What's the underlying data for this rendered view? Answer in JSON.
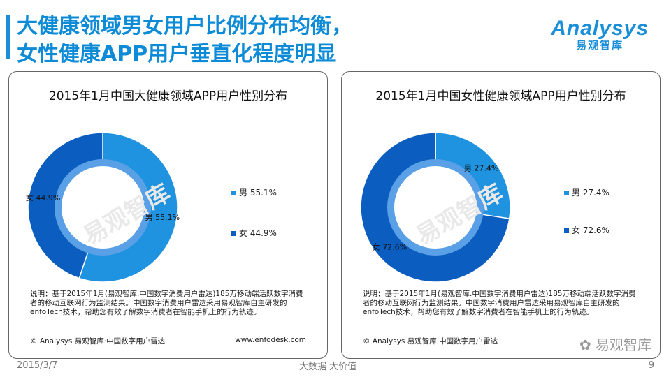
{
  "header": {
    "title_line1": "大健康领域男女用户比例分布均衡，",
    "title_line2": "女性健康APP用户垂直化程度明显",
    "logo_brand": "Analysys",
    "logo_sub": "易观智库"
  },
  "colors": {
    "male": "#1f93e0",
    "female": "#0b5dc0",
    "inner_ring": "#5aa0e6",
    "title": "#0e8bd6"
  },
  "chart_data": [
    {
      "type": "pie",
      "title": "2015年1月中国大健康领域APP用户性别分布",
      "categories": [
        "男",
        "女"
      ],
      "values": [
        55.1,
        44.9
      ],
      "labels": [
        "男 55.1%",
        "女 44.9%"
      ],
      "legend": [
        "男 55.1%",
        "女 44.9%"
      ],
      "legend_position": "right"
    },
    {
      "type": "pie",
      "title": "2015年1月中国女性健康领域APP用户性别分布",
      "categories": [
        "男",
        "女"
      ],
      "values": [
        27.4,
        72.6
      ],
      "labels": [
        "男 27.4%",
        "女 72.6%"
      ],
      "legend": [
        "男 27.4%",
        "女 72.6%"
      ],
      "legend_position": "right"
    }
  ],
  "panel": {
    "note": "说明：基于2015年1月(易观智库.中国数字消费用户雷达)185万移动端活跃数字消费者的移动互联网行为监测结果。中国数字消费用户雷达采用易观智库自主研发的enfoTech技术，帮助您有效了解数字消费者在智能手机上的行为轨迹。",
    "copyright": "© Analysys 易观智库·中国数字用户雷达",
    "url": "www.enfodesk.com",
    "watermark": "易观智库"
  },
  "footer": {
    "date": "2015/3/7",
    "middle": "大数据   大价值",
    "page": "9",
    "wechat": "易观智库"
  }
}
